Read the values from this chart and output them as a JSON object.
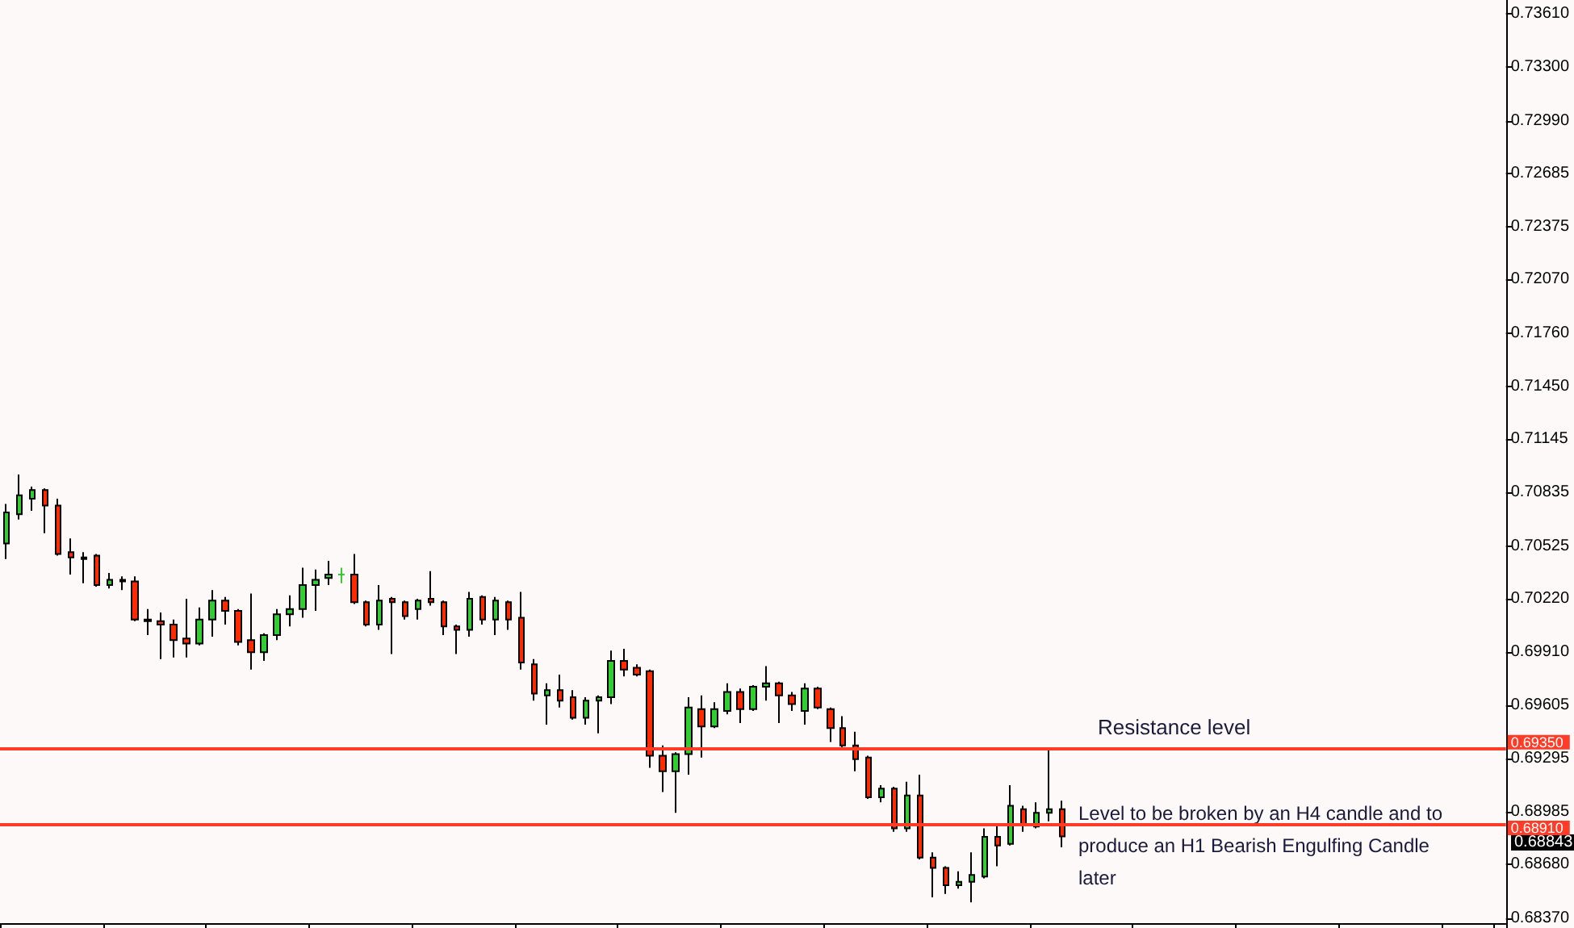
{
  "chart_data": {
    "type": "candlestick",
    "categories": [
      null,
      null,
      null,
      null,
      null,
      null,
      null,
      null,
      null,
      null,
      null,
      null,
      null,
      null,
      null,
      null,
      null,
      null,
      null,
      null,
      null,
      null,
      null,
      null,
      null,
      null,
      null,
      null,
      null,
      null,
      null,
      null,
      null,
      null,
      null,
      null,
      null,
      null,
      null,
      null,
      null,
      null,
      null,
      null,
      null,
      null,
      null,
      null,
      null,
      null,
      null,
      null,
      null,
      null,
      null,
      null,
      null,
      null,
      null,
      null,
      null,
      null,
      null,
      null,
      null,
      null,
      null,
      null,
      null,
      null,
      null,
      null,
      null,
      null,
      null,
      null,
      null,
      null,
      null,
      null,
      null,
      null,
      null,
      null,
      null,
      null,
      null,
      null,
      null,
      null,
      null,
      null,
      null,
      null,
      null,
      null,
      null,
      null,
      null,
      null,
      null,
      null,
      null,
      null,
      null,
      null,
      null,
      null,
      null,
      null,
      null,
      null,
      null,
      null,
      null,
      null,
      null
    ],
    "ohlc": [
      [
        0.7054,
        0.7077,
        0.7045,
        0.7072
      ],
      [
        0.7071,
        0.7094,
        0.7068,
        0.7082
      ],
      [
        0.708,
        0.7087,
        0.7073,
        0.7085
      ],
      [
        0.7085,
        0.7086,
        0.706,
        0.7076
      ],
      [
        0.7076,
        0.708,
        0.7047,
        0.7048
      ],
      [
        0.7049,
        0.7057,
        0.7036,
        0.7046
      ],
      [
        0.7046,
        0.7049,
        0.7031,
        0.7045
      ],
      [
        0.7047,
        0.7048,
        0.7029,
        0.703
      ],
      [
        0.703,
        0.7037,
        0.7028,
        0.7033
      ],
      [
        0.7033,
        0.7035,
        0.7027,
        0.7032
      ],
      [
        0.7032,
        0.7035,
        0.7009,
        0.701
      ],
      [
        0.701,
        0.7016,
        0.7001,
        0.7009
      ],
      [
        0.7009,
        0.7014,
        0.6987,
        0.7007
      ],
      [
        0.7007,
        0.701,
        0.6988,
        0.6998
      ],
      [
        0.6999,
        0.7022,
        0.6988,
        0.6996
      ],
      [
        0.6996,
        0.7017,
        0.6995,
        0.701
      ],
      [
        0.701,
        0.7027,
        0.7,
        0.7021
      ],
      [
        0.7021,
        0.7023,
        0.7007,
        0.7015
      ],
      [
        0.7015,
        0.7016,
        0.6995,
        0.6997
      ],
      [
        0.6998,
        0.7025,
        0.6981,
        0.6991
      ],
      [
        0.6991,
        0.7002,
        0.6986,
        0.7001
      ],
      [
        0.7001,
        0.7016,
        0.6998,
        0.7013
      ],
      [
        0.7013,
        0.7024,
        0.7006,
        0.7016
      ],
      [
        0.7016,
        0.704,
        0.7011,
        0.703
      ],
      [
        0.703,
        0.7039,
        0.7015,
        0.7033
      ],
      [
        0.7034,
        0.7044,
        0.703,
        0.7036
      ],
      [
        0.7036,
        0.704,
        0.7031,
        0.7036
      ],
      [
        0.7036,
        0.7048,
        0.7019,
        0.702
      ],
      [
        0.702,
        0.7021,
        0.7006,
        0.7007
      ],
      [
        0.7007,
        0.703,
        0.7004,
        0.7021
      ],
      [
        0.7022,
        0.7023,
        0.699,
        0.702
      ],
      [
        0.702,
        0.7021,
        0.701,
        0.7012
      ],
      [
        0.7016,
        0.7022,
        0.701,
        0.7021
      ],
      [
        0.7022,
        0.7038,
        0.7018,
        0.702
      ],
      [
        0.702,
        0.7021,
        0.7001,
        0.7006
      ],
      [
        0.7006,
        0.7007,
        0.699,
        0.7004
      ],
      [
        0.7004,
        0.7026,
        0.7,
        0.7022
      ],
      [
        0.7023,
        0.7024,
        0.7007,
        0.701
      ],
      [
        0.701,
        0.7023,
        0.7001,
        0.7021
      ],
      [
        0.702,
        0.7021,
        0.7004,
        0.701
      ],
      [
        0.7011,
        0.7026,
        0.6981,
        0.6985
      ],
      [
        0.6984,
        0.6987,
        0.6963,
        0.6967
      ],
      [
        0.6966,
        0.6973,
        0.6949,
        0.6969
      ],
      [
        0.6969,
        0.6978,
        0.6959,
        0.6963
      ],
      [
        0.6965,
        0.6969,
        0.6952,
        0.6953
      ],
      [
        0.6953,
        0.6965,
        0.6949,
        0.6963
      ],
      [
        0.6963,
        0.6966,
        0.6944,
        0.6965
      ],
      [
        0.6965,
        0.6992,
        0.6961,
        0.6986
      ],
      [
        0.6986,
        0.6993,
        0.6977,
        0.6981
      ],
      [
        0.6982,
        0.6984,
        0.6977,
        0.6978
      ],
      [
        0.698,
        0.6981,
        0.6924,
        0.6931
      ],
      [
        0.6931,
        0.6937,
        0.691,
        0.6922
      ],
      [
        0.6922,
        0.6933,
        0.6898,
        0.6932
      ],
      [
        0.6932,
        0.6965,
        0.692,
        0.6959
      ],
      [
        0.6958,
        0.6966,
        0.693,
        0.6948
      ],
      [
        0.6948,
        0.6962,
        0.6947,
        0.6958
      ],
      [
        0.6957,
        0.6973,
        0.6955,
        0.6968
      ],
      [
        0.6968,
        0.697,
        0.695,
        0.6958
      ],
      [
        0.6958,
        0.6972,
        0.6957,
        0.6971
      ],
      [
        0.6971,
        0.6983,
        0.6963,
        0.6973
      ],
      [
        0.6973,
        0.6974,
        0.695,
        0.6966
      ],
      [
        0.6966,
        0.6968,
        0.6957,
        0.6961
      ],
      [
        0.6957,
        0.6973,
        0.6949,
        0.697
      ],
      [
        0.697,
        0.6971,
        0.6958,
        0.6959
      ],
      [
        0.6958,
        0.6959,
        0.6939,
        0.6947
      ],
      [
        0.6947,
        0.6954,
        0.6936,
        0.6937
      ],
      [
        0.6937,
        0.6945,
        0.6922,
        0.6929
      ],
      [
        0.693,
        0.6931,
        0.6906,
        0.6907
      ],
      [
        0.6907,
        0.6914,
        0.6904,
        0.6912
      ],
      [
        0.6912,
        0.6913,
        0.6887,
        0.6889
      ],
      [
        0.6889,
        0.6916,
        0.6887,
        0.6908
      ],
      [
        0.6908,
        0.692,
        0.6871,
        0.6872
      ],
      [
        0.6872,
        0.6875,
        0.6849,
        0.6866
      ],
      [
        0.6866,
        0.6867,
        0.6851,
        0.6856
      ],
      [
        0.6856,
        0.6864,
        0.6854,
        0.6858
      ],
      [
        0.6858,
        0.6875,
        0.6846,
        0.6862
      ],
      [
        0.6861,
        0.6889,
        0.686,
        0.6884
      ],
      [
        0.6884,
        0.6892,
        0.6867,
        0.6879
      ],
      [
        0.688,
        0.6914,
        0.6879,
        0.6902
      ],
      [
        0.69,
        0.6902,
        0.6887,
        0.6891
      ],
      [
        0.689,
        0.6904,
        0.6889,
        0.6898
      ],
      [
        0.6898,
        0.6935,
        0.6893,
        0.69
      ],
      [
        0.69,
        0.6905,
        0.6878,
        0.68843
      ],
      null,
      null,
      null,
      null,
      null,
      null,
      null,
      null,
      null,
      null,
      null,
      null,
      null,
      null,
      null,
      null,
      null,
      null,
      null,
      null,
      null,
      null,
      null,
      null,
      null,
      null,
      null,
      null,
      null,
      null,
      null,
      null,
      null,
      null
    ],
    "colors": [
      "#32cd32",
      "#32cd32",
      "#32cd32",
      "#ff2a00",
      "#ff2a00",
      "#ff2a00",
      "#ff2a00",
      "#ff2a00",
      "#32cd32",
      "#ff2a00",
      "#ff2a00",
      "#ff2a00",
      "#ff2a00",
      "#ff2a00",
      "#ff2a00",
      "#32cd32",
      "#32cd32",
      "#ff2a00",
      "#ff2a00",
      "#ff2a00",
      "#32cd32",
      "#32cd32",
      "#32cd32",
      "#32cd32",
      "#32cd32",
      "#32cd32",
      "#32cd32",
      "#ff2a00",
      "#ff2a00",
      "#32cd32",
      "#ff2a00",
      "#ff2a00",
      "#32cd32",
      "#ff2a00",
      "#ff2a00",
      "#ff2a00",
      "#32cd32",
      "#ff2a00",
      "#32cd32",
      "#ff2a00",
      "#ff2a00",
      "#ff2a00",
      "#32cd32",
      "#ff2a00",
      "#ff2a00",
      "#32cd32",
      "#32cd32",
      "#32cd32",
      "#ff2a00",
      "#ff2a00",
      "#ff2a00",
      "#ff2a00",
      "#32cd32",
      "#32cd32",
      "#ff2a00",
      "#32cd32",
      "#32cd32",
      "#ff2a00",
      "#32cd32",
      "#32cd32",
      "#ff2a00",
      "#ff2a00",
      "#32cd32",
      "#ff2a00",
      "#ff2a00",
      "#ff2a00",
      "#ff2a00",
      "#ff2a00",
      "#32cd32",
      "#ff2a00",
      "#32cd32",
      "#ff2a00",
      "#ff2a00",
      "#ff2a00",
      "#32cd32",
      "#32cd32",
      "#32cd32",
      "#ff2a00",
      "#32cd32",
      "#ff2a00",
      "#32cd32",
      "#32cd32",
      "#ff2a00",
      null,
      null,
      null,
      null,
      null,
      null,
      null,
      null,
      null,
      null,
      null,
      null,
      null,
      null,
      null,
      null,
      null,
      null,
      null,
      null,
      null,
      null,
      null,
      null,
      null,
      null,
      null,
      null,
      null,
      null,
      null,
      null,
      null,
      null
    ],
    "ylim": [
      0.6834,
      0.7369
    ],
    "yticks": [
      {
        "value": 0.7361,
        "label": "0.73610"
      },
      {
        "value": 0.733,
        "label": "0.73300"
      },
      {
        "value": 0.7299,
        "label": "0.72990"
      },
      {
        "value": 0.72685,
        "label": "0.72685"
      },
      {
        "value": 0.72375,
        "label": "0.72375"
      },
      {
        "value": 0.7207,
        "label": "0.72070"
      },
      {
        "value": 0.7176,
        "label": "0.71760"
      },
      {
        "value": 0.7145,
        "label": "0.71450"
      },
      {
        "value": 0.71145,
        "label": "0.71145"
      },
      {
        "value": 0.70835,
        "label": "0.70835"
      },
      {
        "value": 0.70525,
        "label": "0.70525"
      },
      {
        "value": 0.7022,
        "label": "0.70220"
      },
      {
        "value": 0.6991,
        "label": "0.69910"
      },
      {
        "value": 0.69605,
        "label": "0.69605"
      },
      {
        "value": 0.69295,
        "label": "0.69295"
      },
      {
        "value": 0.68985,
        "label": "0.68985"
      },
      {
        "value": 0.6868,
        "label": "0.68680"
      },
      {
        "value": 0.6837,
        "label": "0.68370"
      }
    ],
    "tick_labels": "y",
    "ref_lines": [
      {
        "axis": "y",
        "value": 0.6935,
        "label": "0.69350",
        "color": "#ff3c28"
      },
      {
        "axis": "y",
        "value": 0.6891,
        "label": "0.68910",
        "color": "#ff3c28"
      }
    ],
    "annotations": [
      "Resistance level",
      "Level to be broken by an H4 candle and to produce an H1 Bearish Engulfing Candle later",
      "0.68843"
    ]
  }
}
